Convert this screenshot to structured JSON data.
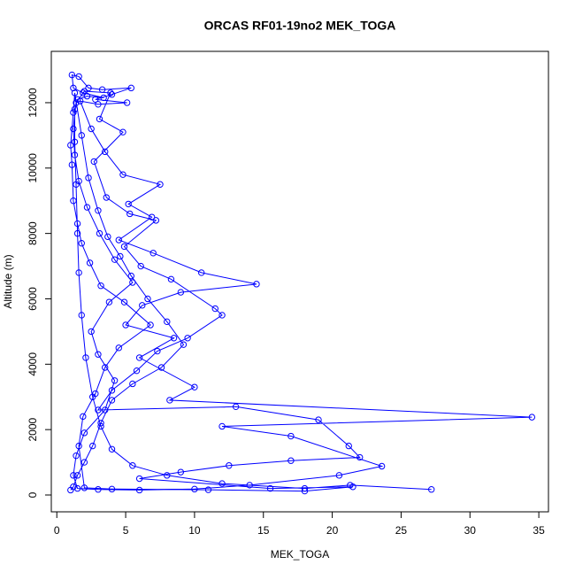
{
  "chart_data": {
    "type": "line",
    "title": "ORCAS RF01-19no2 MEK_TOGA",
    "x_label": "MEK_TOGA",
    "y_label": "Altitude (m)",
    "color": "#0000ff",
    "markers": "circle",
    "x": [
      27.2,
      21.3,
      18,
      12,
      8,
      5.5,
      4,
      3.2,
      2.6,
      2.1,
      1.8,
      1.6,
      1.5,
      1.4,
      1.3,
      1.3,
      1.5,
      2.2,
      3.4,
      1.9,
      1.2,
      1.1,
      1.6,
      2.3,
      3.3,
      5.4,
      4.0,
      2.8,
      5.1,
      3.0,
      1.7,
      2.5,
      3.5,
      4.8,
      7.5,
      5.2,
      6.9,
      4.5,
      7.0,
      10.5,
      14.5,
      9.0,
      6.2,
      5.0,
      8.5,
      6.0,
      10.0,
      8.2,
      34.5,
      12.0,
      17.0,
      23.6,
      20.5,
      14,
      10,
      6,
      3,
      1.5,
      1.2,
      1.4,
      2.0,
      3.5,
      4.2,
      3.0,
      2.5,
      3.8,
      5.5,
      4.2,
      3.1,
      2.2,
      1.6,
      1.3,
      1.2,
      1.4,
      2.0,
      3.9,
      3.1,
      4.8,
      2.7,
      3.6,
      5.3,
      7.2,
      4.9,
      6.1,
      8.3,
      11.5,
      12.0,
      9.5,
      7.3,
      5.8,
      4.0,
      3.0,
      13.0,
      19.0,
      21.2,
      22.0,
      17.0,
      12.5,
      9.0,
      6.0,
      15.5,
      21.5,
      18,
      11,
      4,
      2,
      1.6,
      1.9,
      2.8,
      3.5,
      4.5,
      6.8,
      4.9,
      3.2,
      2.4,
      1.8,
      1.5,
      1.2,
      1.1,
      1.0,
      1.2,
      1.3,
      1.8,
      2.3,
      3.0,
      3.7,
      4.6,
      5.4,
      6.6,
      8.0,
      9.2,
      7.6,
      5.5,
      4.0,
      3.2,
      2.6,
      2.0,
      1.5,
      1.2,
      1.0
    ],
    "y": [
      170,
      300,
      200,
      350,
      600,
      900,
      1400,
      2100,
      3000,
      4200,
      5500,
      6800,
      8000,
      9500,
      10800,
      11800,
      12100,
      12200,
      12150,
      12300,
      12450,
      12850,
      12800,
      12450,
      12400,
      12450,
      12250,
      12100,
      12000,
      11950,
      12050,
      11200,
      10500,
      9800,
      9500,
      8900,
      8500,
      7800,
      7400,
      6800,
      6450,
      6200,
      5800,
      5200,
      4800,
      4200,
      3300,
      2900,
      2380,
      2100,
      1800,
      880,
      600,
      300,
      180,
      150,
      170,
      200,
      600,
      1200,
      1900,
      2600,
      3500,
      4300,
      5000,
      5900,
      6500,
      7200,
      8000,
      8800,
      9600,
      10400,
      11200,
      12000,
      12350,
      12300,
      11500,
      11100,
      10200,
      9100,
      8600,
      8400,
      7600,
      7000,
      6600,
      5700,
      5500,
      4800,
      4400,
      3800,
      3200,
      2600,
      2700,
      2300,
      1500,
      1150,
      1050,
      900,
      700,
      500,
      200,
      250,
      120,
      160,
      180,
      220,
      1500,
      2400,
      3100,
      3900,
      4500,
      5200,
      5900,
      6400,
      7100,
      7700,
      8300,
      9000,
      10100,
      10700,
      11700,
      12300,
      11000,
      9700,
      8700,
      7900,
      7300,
      6700,
      6000,
      5300,
      4600,
      3900,
      3400,
      2900,
      2200,
      1500,
      1000,
      600,
      250,
      150
    ],
    "xlim": [
      -0.4,
      35.7
    ],
    "ylim": [
      -515,
      13570
    ],
    "xticks": [
      0,
      5,
      10,
      15,
      20,
      25,
      30,
      35
    ],
    "yticks": [
      0,
      2000,
      4000,
      6000,
      8000,
      10000,
      12000
    ]
  }
}
